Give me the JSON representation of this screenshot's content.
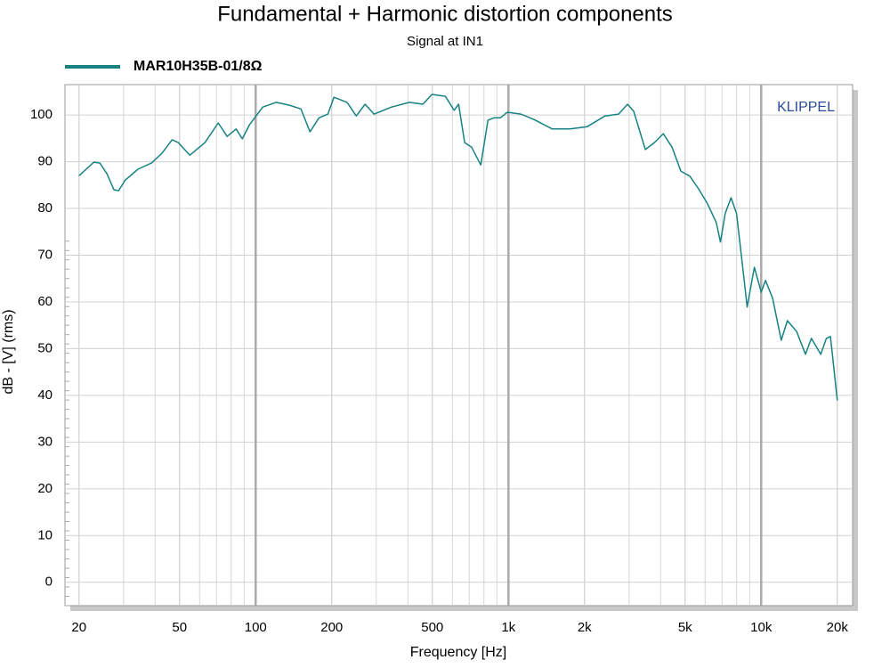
{
  "chart_data": {
    "type": "line",
    "title": "Fundamental + Harmonic distortion components",
    "subtitle": "Signal at IN1",
    "annotation": "KLIPPEL",
    "x_label": "Frequency [Hz]",
    "y_label": "dB - [V]  (rms)",
    "log_x": true,
    "grid": true,
    "legend": "top-left",
    "xlim": [
      17.6,
      23000
    ],
    "ylim": [
      -5,
      106.5
    ],
    "xticks": [
      20,
      50,
      100,
      200,
      500,
      {
        "value": 1000,
        "label": "1k"
      },
      {
        "value": 2000,
        "label": "2k"
      },
      {
        "value": 5000,
        "label": "5k"
      },
      {
        "value": 10000,
        "label": "10k"
      },
      {
        "value": 20000,
        "label": "20k"
      }
    ],
    "yticks": [
      0,
      10,
      20,
      30,
      40,
      50,
      60,
      70,
      80,
      90,
      100
    ],
    "x": [
      20,
      22.9,
      24.2,
      25.8,
      27.5,
      28.7,
      30.4,
      34.2,
      38.7,
      42.6,
      46.7,
      49.4,
      54.9,
      63,
      71.1,
      77.1,
      83.7,
      88.5,
      94.5,
      106.7,
      120.5,
      136,
      151,
      164,
      178,
      193,
      204,
      230,
      250,
      271,
      294,
      345,
      406,
      459,
      498,
      563,
      610,
      635,
      671,
      715,
      777,
      830,
      877,
      929,
      990,
      1120,
      1265,
      1490,
      1750,
      2050,
      2410,
      2730,
      2960,
      3130,
      3480,
      3780,
      4100,
      4440,
      4810,
      5220,
      5650,
      6120,
      6640,
      6900,
      7200,
      7600,
      7990,
      8450,
      8800,
      9400,
      10000,
      10400,
      11100,
      12000,
      12700,
      13800,
      14960,
      15800,
      17200,
      18100,
      18800,
      20000
    ],
    "series": [
      {
        "name": "MAR10H35B-01/8Ω",
        "color": "#178282",
        "values": [
          87.0,
          89.9,
          89.7,
          87.4,
          84.0,
          83.8,
          86.0,
          88.4,
          89.7,
          91.8,
          94.7,
          94.1,
          91.4,
          94.1,
          98.3,
          95.4,
          97.0,
          94.9,
          97.9,
          101.7,
          102.7,
          102.1,
          101.3,
          96.4,
          99.4,
          100.2,
          103.8,
          102.7,
          99.8,
          102.3,
          100.2,
          101.7,
          102.7,
          102.3,
          104.4,
          104.0,
          101.0,
          102.3,
          94.1,
          93.1,
          89.3,
          98.9,
          99.4,
          99.4,
          100.6,
          100.2,
          99.0,
          97.0,
          97.0,
          97.5,
          99.8,
          100.2,
          102.3,
          100.8,
          92.6,
          94.1,
          96.0,
          93.1,
          88.0,
          86.9,
          84.2,
          81.1,
          77.0,
          72.8,
          78.9,
          82.3,
          78.9,
          67.4,
          58.9,
          67.4,
          62.1,
          64.6,
          60.8,
          51.8,
          56.0,
          53.7,
          48.8,
          52.2,
          48.8,
          52.2,
          52.6,
          38.9
        ]
      }
    ]
  }
}
